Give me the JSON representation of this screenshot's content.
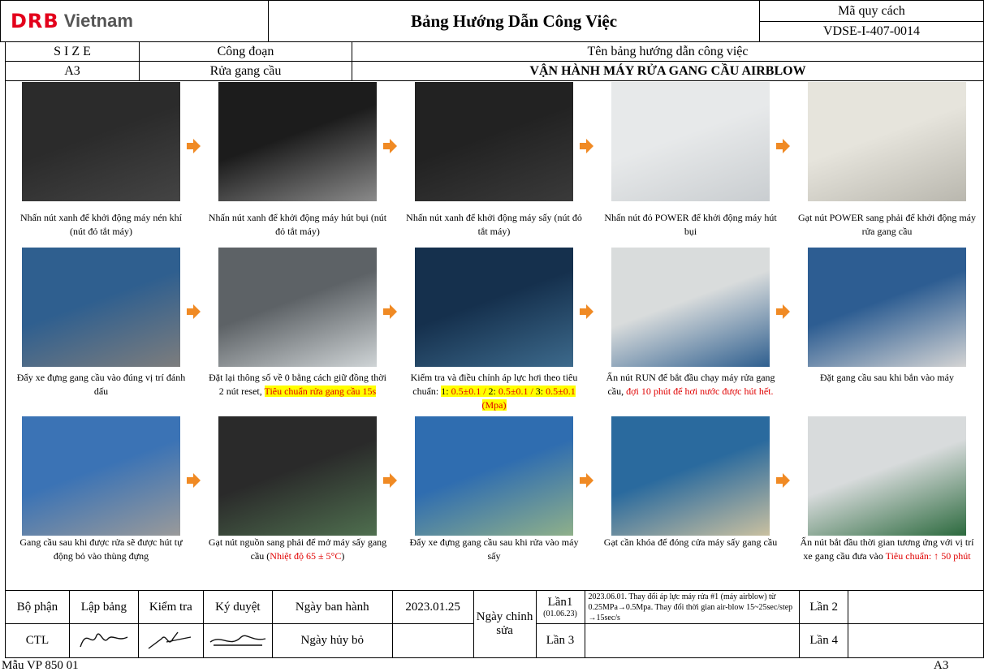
{
  "header": {
    "logo": {
      "brand": "DRB",
      "suffix": "Vietnam"
    },
    "title": "Bảng Hướng Dẫn Công Việc",
    "spec_label": "Mã quy cách",
    "spec_code": "VDSE-I-407-0014"
  },
  "info": {
    "size_label": "S I Z E",
    "size": "A3",
    "process_label": "Công đoạn",
    "process": "Rửa gang cầu",
    "name_label": "Tên bảng hướng dẫn công việc",
    "name": "VẬN HÀNH MÁY RỬA GANG CẦU AIRBLOW"
  },
  "steps": [
    {
      "parts": [
        {
          "text": "Nhấn nút xanh để khởi động máy nén khí (nút đỏ tắt máy)"
        }
      ]
    },
    {
      "parts": [
        {
          "text": "Nhấn nút xanh để khởi động máy hút bụi (nút đỏ tắt máy)"
        }
      ]
    },
    {
      "parts": [
        {
          "text": "Nhấn nút xanh để khởi động máy sấy (nút đỏ tắt máy)"
        }
      ]
    },
    {
      "parts": [
        {
          "text": "Nhấn nút đỏ POWER để khởi động máy hút bụi"
        }
      ]
    },
    {
      "parts": [
        {
          "text": "Gạt nút POWER sang phải để khởi động máy rửa gang cầu"
        }
      ]
    },
    {
      "parts": [
        {
          "text": "Đẩy xe đựng gang cầu vào đúng vị trí đánh dấu"
        }
      ]
    },
    {
      "parts": [
        {
          "text": "Đặt lại thông số về 0 bằng cách giữ đồng thời 2 nút reset, "
        },
        {
          "text": "Tiêu chuẩn rửa gang cầu 15s",
          "color": "#e00000",
          "highlight": "#ffff00"
        }
      ]
    },
    {
      "parts": [
        {
          "text": "Kiểm tra và điều chỉnh áp lực hơi theo tiêu chuẩn: "
        },
        {
          "text": "1:",
          "highlight": "#ffff00"
        },
        {
          "text": " 0.5±0.1 / ",
          "color": "#e00000",
          "highlight": "#ffff00"
        },
        {
          "text": "2:",
          "highlight": "#ffff00"
        },
        {
          "text": " 0.5±0.1 / ",
          "color": "#e00000",
          "highlight": "#ffff00"
        },
        {
          "text": "3:",
          "highlight": "#ffff00"
        },
        {
          "text": " 0.5±0.1 (Mpa)",
          "color": "#e00000",
          "highlight": "#ffff00"
        }
      ]
    },
    {
      "parts": [
        {
          "text": "Ấn nút RUN để bắt đầu chạy máy rửa gang cầu, "
        },
        {
          "text": "đợi 10 phút để hơi nước được hút hết.",
          "color": "#e00000"
        }
      ]
    },
    {
      "parts": [
        {
          "text": "Đặt gang cầu sau khi bắn vào máy"
        }
      ]
    },
    {
      "parts": [
        {
          "text": "Gang cầu sau khi được rửa sẽ được hút tự động bỏ vào thùng đựng"
        }
      ]
    },
    {
      "parts": [
        {
          "text": "Gạt nút nguồn sang phải để mở máy sấy gang cầu ("
        },
        {
          "text": "Nhiệt độ 65 ± 5°C",
          "color": "#e00000"
        },
        {
          "text": ")"
        }
      ]
    },
    {
      "parts": [
        {
          "text": "Đẩy xe đựng gang cầu sau khi rửa vào máy sấy"
        }
      ]
    },
    {
      "parts": [
        {
          "text": "Gạt cần khóa để đóng cửa máy sấy gang cầu"
        }
      ]
    },
    {
      "parts": [
        {
          "text": "Ấn nút bắt đầu thời gian tương ứng với vị trí xe gang cầu đưa vào "
        },
        {
          "text": "Tiêu chuẩn: ↑ 50 phút",
          "color": "#e00000"
        }
      ]
    }
  ],
  "footer": {
    "dept_label": "Bộ phận",
    "made_label": "Lập bảng",
    "check_label": "Kiểm tra",
    "approve_label": "Ký duyệt",
    "issue_label": "Ngày ban hành",
    "issue_date": "2023.01.25",
    "revise_label": "Ngày chỉnh sửa",
    "rev1_label": "Lần1",
    "rev1_date": "(01.06.23)",
    "rev1_note": "2023.06.01. Thay đổi áp lực máy rửa #1 (máy airblow) từ 0.25MPa→0.5Mpa. Thay đổi thời gian air-blow 15~25sec/step →15sec/s",
    "rev2_label": "Lần 2",
    "dept": "CTL",
    "cancel_label": "Ngày hủy bỏ",
    "rev3_label": "Lần 3",
    "rev4_label": "Lần 4"
  },
  "form_code": "Mẫu VP  850  01",
  "paper_size": "A3"
}
